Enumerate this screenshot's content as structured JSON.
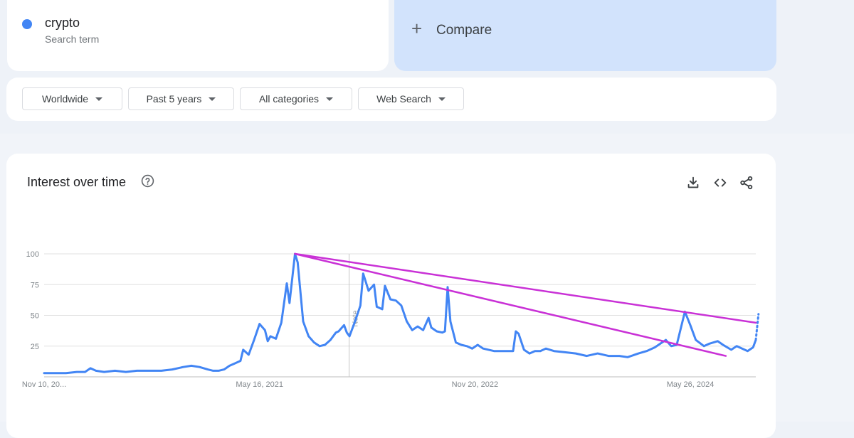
{
  "search_term": {
    "name": "crypto",
    "subtitle": "Search term",
    "color": "#4285f4"
  },
  "compare": {
    "label": "Compare"
  },
  "filters": [
    {
      "label": "Worldwide"
    },
    {
      "label": "Past 5 years"
    },
    {
      "label": "All categories"
    },
    {
      "label": "Web Search"
    }
  ],
  "card": {
    "title": "Interest over time",
    "icons": [
      "help-icon",
      "download-icon",
      "embed-code-icon",
      "share-icon"
    ]
  },
  "chart_data": {
    "type": "line",
    "y_ticks": [
      25,
      50,
      75,
      100
    ],
    "ylim": [
      0,
      100
    ],
    "x_tick_labels": [
      "Nov 10, 20...",
      "May 16, 2021",
      "Nov 20, 2022",
      "May 26, 2024"
    ],
    "x_ticks": [
      "2019-11-10",
      "2021-05-16",
      "2022-11-20",
      "2024-05-26"
    ],
    "xlim": [
      "2019-11-10",
      "2024-11-10"
    ],
    "grid": true,
    "note_label": "Note",
    "note_date": "2022-01-01",
    "series": [
      {
        "color": "#4285f4",
        "points": [
          [
            "2019-11-10",
            3
          ],
          [
            "2019-12-01",
            3
          ],
          [
            "2020-01-05",
            3
          ],
          [
            "2020-02-02",
            4
          ],
          [
            "2020-02-23",
            4
          ],
          [
            "2020-03-08",
            7
          ],
          [
            "2020-03-22",
            5
          ],
          [
            "2020-04-12",
            4
          ],
          [
            "2020-05-10",
            5
          ],
          [
            "2020-06-07",
            4
          ],
          [
            "2020-07-05",
            5
          ],
          [
            "2020-08-02",
            5
          ],
          [
            "2020-09-06",
            5
          ],
          [
            "2020-10-04",
            6
          ],
          [
            "2020-11-01",
            8
          ],
          [
            "2020-11-22",
            9
          ],
          [
            "2020-12-13",
            8
          ],
          [
            "2021-01-03",
            6
          ],
          [
            "2021-01-17",
            5
          ],
          [
            "2021-01-31",
            5
          ],
          [
            "2021-02-14",
            6
          ],
          [
            "2021-02-28",
            9
          ],
          [
            "2021-03-14",
            11
          ],
          [
            "2021-03-28",
            13
          ],
          [
            "2021-04-04",
            22
          ],
          [
            "2021-04-18",
            18
          ],
          [
            "2021-05-02",
            30
          ],
          [
            "2021-05-16",
            43
          ],
          [
            "2021-05-30",
            38
          ],
          [
            "2021-06-06",
            29
          ],
          [
            "2021-06-13",
            33
          ],
          [
            "2021-06-27",
            31
          ],
          [
            "2021-07-11",
            44
          ],
          [
            "2021-07-25",
            76
          ],
          [
            "2021-08-01",
            60
          ],
          [
            "2021-08-15",
            100
          ],
          [
            "2021-08-22",
            93
          ],
          [
            "2021-09-05",
            45
          ],
          [
            "2021-09-19",
            33
          ],
          [
            "2021-10-03",
            28
          ],
          [
            "2021-10-17",
            25
          ],
          [
            "2021-10-31",
            26
          ],
          [
            "2021-11-14",
            30
          ],
          [
            "2021-11-28",
            36
          ],
          [
            "2021-12-05",
            37
          ],
          [
            "2021-12-19",
            42
          ],
          [
            "2021-12-26",
            36
          ],
          [
            "2022-01-02",
            33
          ],
          [
            "2022-01-16",
            45
          ],
          [
            "2022-01-30",
            58
          ],
          [
            "2022-02-06",
            84
          ],
          [
            "2022-02-20",
            70
          ],
          [
            "2022-03-06",
            75
          ],
          [
            "2022-03-13",
            57
          ],
          [
            "2022-03-27",
            55
          ],
          [
            "2022-04-03",
            74
          ],
          [
            "2022-04-17",
            63
          ],
          [
            "2022-05-01",
            62
          ],
          [
            "2022-05-15",
            58
          ],
          [
            "2022-05-29",
            45
          ],
          [
            "2022-06-12",
            38
          ],
          [
            "2022-06-26",
            41
          ],
          [
            "2022-07-10",
            38
          ],
          [
            "2022-07-24",
            48
          ],
          [
            "2022-07-31",
            40
          ],
          [
            "2022-08-14",
            37
          ],
          [
            "2022-08-28",
            36
          ],
          [
            "2022-09-04",
            37
          ],
          [
            "2022-09-11",
            73
          ],
          [
            "2022-09-18",
            45
          ],
          [
            "2022-10-02",
            28
          ],
          [
            "2022-10-16",
            26
          ],
          [
            "2022-10-30",
            25
          ],
          [
            "2022-11-13",
            23
          ],
          [
            "2022-11-27",
            26
          ],
          [
            "2022-12-11",
            23
          ],
          [
            "2023-01-08",
            21
          ],
          [
            "2023-02-05",
            21
          ],
          [
            "2023-02-26",
            21
          ],
          [
            "2023-03-05",
            37
          ],
          [
            "2023-03-12",
            35
          ],
          [
            "2023-03-26",
            22
          ],
          [
            "2023-04-09",
            19
          ],
          [
            "2023-04-23",
            21
          ],
          [
            "2023-05-07",
            21
          ],
          [
            "2023-05-21",
            23
          ],
          [
            "2023-06-11",
            21
          ],
          [
            "2023-07-09",
            20
          ],
          [
            "2023-08-06",
            19
          ],
          [
            "2023-09-03",
            17
          ],
          [
            "2023-10-01",
            19
          ],
          [
            "2023-10-29",
            17
          ],
          [
            "2023-11-26",
            17
          ],
          [
            "2023-12-17",
            16
          ],
          [
            "2024-01-14",
            19
          ],
          [
            "2024-02-04",
            21
          ],
          [
            "2024-02-25",
            24
          ],
          [
            "2024-03-10",
            27
          ],
          [
            "2024-03-24",
            30
          ],
          [
            "2024-04-07",
            25
          ],
          [
            "2024-04-21",
            26
          ],
          [
            "2024-05-12",
            53
          ],
          [
            "2024-05-26",
            42
          ],
          [
            "2024-06-09",
            30
          ],
          [
            "2024-06-30",
            25
          ],
          [
            "2024-07-14",
            27
          ],
          [
            "2024-08-04",
            29
          ],
          [
            "2024-08-18",
            26
          ],
          [
            "2024-09-08",
            22
          ],
          [
            "2024-09-22",
            25
          ],
          [
            "2024-10-06",
            23
          ],
          [
            "2024-10-20",
            21
          ],
          [
            "2024-11-03",
            24
          ],
          [
            "2024-11-10",
            30
          ]
        ],
        "partial_points": [
          [
            "2024-11-10",
            30
          ],
          [
            "2024-11-17",
            51
          ]
        ]
      }
    ],
    "trendlines": [
      {
        "color": "#c931d6",
        "from": [
          "2021-08-15",
          100
        ],
        "to": [
          "2024-11-10",
          44
        ]
      },
      {
        "color": "#c931d6",
        "from": [
          "2021-08-15",
          100
        ],
        "to": [
          "2024-08-25",
          17
        ]
      }
    ]
  }
}
